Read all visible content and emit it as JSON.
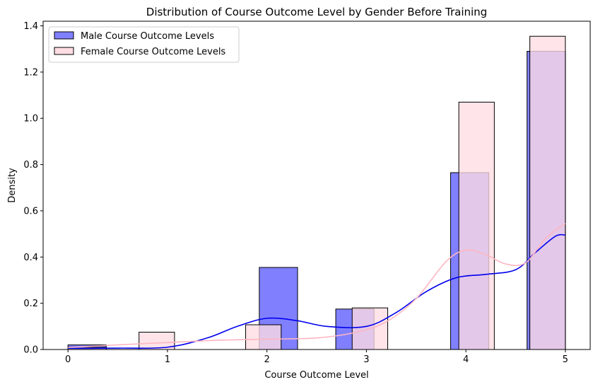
{
  "chart_data": {
    "type": "histogram",
    "title": "Distribution of Course Outcome Level by Gender Before Training",
    "xlabel": "Course Outcome Level",
    "ylabel": "Density",
    "xlim": [
      -0.25,
      5.25
    ],
    "ylim": [
      0,
      1.42
    ],
    "xticks": [
      0,
      1,
      2,
      3,
      4,
      5
    ],
    "yticks": [
      0.0,
      0.2,
      0.4,
      0.6,
      0.8,
      1.0,
      1.2,
      1.4
    ],
    "legend_position": "top-left",
    "grid": false,
    "series": [
      {
        "name": "Male Course Outcome Levels",
        "fill": "#8080ff",
        "line": "#0000ee",
        "bins": [
          {
            "x0": 0.0,
            "x1": 0.385,
            "y": 0.02
          },
          {
            "x0": 1.923,
            "x1": 2.308,
            "y": 0.355
          },
          {
            "x0": 2.692,
            "x1": 3.077,
            "y": 0.175
          },
          {
            "x0": 3.846,
            "x1": 4.231,
            "y": 0.765
          },
          {
            "x0": 4.615,
            "x1": 5.0,
            "y": 1.29
          }
        ],
        "kde": [
          [
            0.0,
            0.005
          ],
          [
            0.5,
            0.006
          ],
          [
            1.0,
            0.01
          ],
          [
            1.4,
            0.05
          ],
          [
            1.7,
            0.1
          ],
          [
            2.0,
            0.135
          ],
          [
            2.3,
            0.125
          ],
          [
            2.6,
            0.1
          ],
          [
            3.0,
            0.1
          ],
          [
            3.3,
            0.16
          ],
          [
            3.6,
            0.25
          ],
          [
            3.9,
            0.31
          ],
          [
            4.2,
            0.325
          ],
          [
            4.5,
            0.345
          ],
          [
            4.7,
            0.42
          ],
          [
            4.9,
            0.49
          ],
          [
            5.0,
            0.495
          ]
        ]
      },
      {
        "name": "Female Course Outcome Levels",
        "fill": "#ffdde3",
        "line": "#ffb6c1",
        "bins": [
          {
            "x0": 0.0,
            "x1": 0.385,
            "y": 0.01
          },
          {
            "x0": 0.714,
            "x1": 1.071,
            "y": 0.075
          },
          {
            "x0": 1.786,
            "x1": 2.143,
            "y": 0.107
          },
          {
            "x0": 2.857,
            "x1": 3.214,
            "y": 0.18
          },
          {
            "x0": 3.929,
            "x1": 4.286,
            "y": 1.07
          },
          {
            "x0": 4.643,
            "x1": 5.0,
            "y": 1.355
          }
        ],
        "kde": [
          [
            0.0,
            0.008
          ],
          [
            0.5,
            0.02
          ],
          [
            1.0,
            0.03
          ],
          [
            1.5,
            0.04
          ],
          [
            2.0,
            0.045
          ],
          [
            2.5,
            0.05
          ],
          [
            2.9,
            0.075
          ],
          [
            3.2,
            0.12
          ],
          [
            3.5,
            0.22
          ],
          [
            3.8,
            0.38
          ],
          [
            4.0,
            0.43
          ],
          [
            4.2,
            0.41
          ],
          [
            4.4,
            0.37
          ],
          [
            4.6,
            0.375
          ],
          [
            4.8,
            0.48
          ],
          [
            5.0,
            0.545
          ]
        ]
      }
    ]
  }
}
